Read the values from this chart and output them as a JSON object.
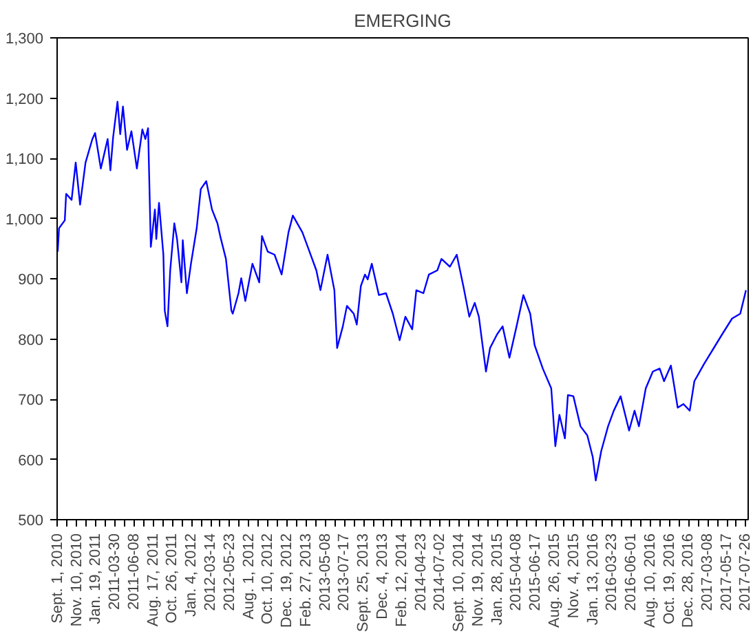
{
  "chart_data": {
    "type": "line",
    "title": "EMERGING",
    "xlim": [
      "2010-08-30",
      "2017-08-03"
    ],
    "ylim": [
      500,
      1300
    ],
    "yticks": [
      500,
      600,
      700,
      800,
      900,
      {
        "value": 1000,
        "label": "1,000"
      },
      {
        "value": 1100,
        "label": "1,100"
      },
      {
        "value": 1200,
        "label": "1,200"
      },
      {
        "value": 1300,
        "label": "1,300"
      }
    ],
    "xticks": [
      {
        "value": "2010-09-01",
        "label": "Sept. 1, 2010"
      },
      {
        "value": "2010-11-10",
        "label": "Nov. 10, 2010"
      },
      {
        "value": "2011-01-19",
        "label": "Jan. 19, 2011"
      },
      {
        "value": "2011-03-30",
        "label": "2011-03-30"
      },
      {
        "value": "2011-06-08",
        "label": "2011-06-08"
      },
      {
        "value": "2011-08-17",
        "label": "Aug. 17, 2011"
      },
      {
        "value": "2011-10-26",
        "label": "Oct. 26, 2011"
      },
      {
        "value": "2012-01-04",
        "label": "Jan. 4, 2012"
      },
      {
        "value": "2012-03-14",
        "label": "2012-03-14"
      },
      {
        "value": "2012-05-23",
        "label": "2012-05-23"
      },
      {
        "value": "2012-08-01",
        "label": "Aug. 1, 2012"
      },
      {
        "value": "2012-10-10",
        "label": "Oct. 10, 2012"
      },
      {
        "value": "2012-12-19",
        "label": "Dec. 19, 2012"
      },
      {
        "value": "2013-02-27",
        "label": "Feb. 27, 2013"
      },
      {
        "value": "2013-05-08",
        "label": "2013-05-08"
      },
      {
        "value": "2013-07-17",
        "label": "2013-07-17"
      },
      {
        "value": "2013-09-25",
        "label": "Sept. 25, 2013"
      },
      {
        "value": "2013-12-04",
        "label": "Dec. 4, 2013"
      },
      {
        "value": "2014-02-12",
        "label": "Feb. 12, 2014"
      },
      {
        "value": "2014-04-23",
        "label": "2014-04-23"
      },
      {
        "value": "2014-07-02",
        "label": "2014-07-02"
      },
      {
        "value": "2014-09-10",
        "label": "Sept. 10, 2014"
      },
      {
        "value": "2014-11-19",
        "label": "Nov. 19, 2014"
      },
      {
        "value": "2015-01-28",
        "label": "Jan. 28, 2015"
      },
      {
        "value": "2015-04-08",
        "label": "2015-04-08"
      },
      {
        "value": "2015-06-17",
        "label": "2015-06-17"
      },
      {
        "value": "2015-08-26",
        "label": "Aug. 26, 2015"
      },
      {
        "value": "2015-11-04",
        "label": "Nov. 4, 2015"
      },
      {
        "value": "2016-01-13",
        "label": "Jan. 13, 2016"
      },
      {
        "value": "2016-03-23",
        "label": "2016-03-23"
      },
      {
        "value": "2016-06-01",
        "label": "2016-06-01"
      },
      {
        "value": "2016-08-10",
        "label": "Aug. 10, 2016"
      },
      {
        "value": "2016-10-19",
        "label": "Oct. 19, 2016"
      },
      {
        "value": "2016-12-28",
        "label": "Dec. 28, 2016"
      },
      {
        "value": "2017-03-08",
        "label": "2017-03-08"
      },
      {
        "value": "2017-05-17",
        "label": "2017-05-17"
      },
      {
        "value": "2017-07-26",
        "label": "2017-07-26"
      }
    ],
    "grid": false,
    "line_style": "solid",
    "series": [
      {
        "color": "#0000ff",
        "x": [
          "2010-09-01",
          "2010-09-06",
          "2010-09-27",
          "2010-10-02",
          "2010-10-22",
          "2010-11-06",
          "2010-11-22",
          "2010-12-12",
          "2011-01-06",
          "2011-01-16",
          "2011-02-06",
          "2011-03-03",
          "2011-03-13",
          "2011-03-23",
          "2011-04-08",
          "2011-04-18",
          "2011-04-28",
          "2011-05-13",
          "2011-05-29",
          "2011-06-18",
          "2011-07-08",
          "2011-07-19",
          "2011-07-29",
          "2011-08-08",
          "2011-08-23",
          "2011-08-28",
          "2011-09-07",
          "2011-09-23",
          "2011-09-28",
          "2011-10-08",
          "2011-10-18",
          "2011-11-02",
          "2011-11-12",
          "2011-11-28",
          "2011-12-03",
          "2011-12-18",
          "2012-01-02",
          "2012-01-23",
          "2012-02-07",
          "2012-02-27",
          "2012-03-19",
          "2012-04-08",
          "2012-04-18",
          "2012-05-09",
          "2012-05-29",
          "2012-06-03",
          "2012-06-24",
          "2012-07-04",
          "2012-07-19",
          "2012-08-14",
          "2012-09-08",
          "2012-09-18",
          "2012-10-09",
          "2012-11-03",
          "2012-11-29",
          "2012-12-24",
          "2013-01-09",
          "2013-02-13",
          "2013-03-11",
          "2013-04-05",
          "2013-04-20",
          "2013-05-16",
          "2013-06-10",
          "2013-06-20",
          "2013-07-11",
          "2013-07-26",
          "2013-08-20",
          "2013-08-31",
          "2013-09-15",
          "2013-09-30",
          "2013-10-10",
          "2013-10-25",
          "2013-11-20",
          "2013-12-16",
          "2014-01-10",
          "2014-02-04",
          "2014-02-25",
          "2014-03-22",
          "2014-04-06",
          "2014-05-02",
          "2014-05-22",
          "2014-06-22",
          "2014-07-07",
          "2014-08-07",
          "2014-09-01",
          "2014-09-26",
          "2014-10-17",
          "2014-11-06",
          "2014-11-21",
          "2014-12-17",
          "2015-01-01",
          "2015-01-27",
          "2015-02-16",
          "2015-03-13",
          "2015-04-08",
          "2015-05-03",
          "2015-05-28",
          "2015-06-13",
          "2015-07-13",
          "2015-08-13",
          "2015-08-28",
          "2015-09-12",
          "2015-10-02",
          "2015-10-13",
          "2015-11-02",
          "2015-11-28",
          "2015-12-23",
          "2016-01-12",
          "2016-01-23",
          "2016-02-12",
          "2016-03-08",
          "2016-03-29",
          "2016-04-23",
          "2016-05-24",
          "2016-06-13",
          "2016-06-29",
          "2016-07-24",
          "2016-08-19",
          "2016-09-13",
          "2016-09-29",
          "2016-10-24",
          "2016-11-18",
          "2016-12-09",
          "2017-01-01",
          "2017-01-18",
          "2017-02-23",
          "2017-03-26",
          "2017-04-30",
          "2017-06-05",
          "2017-07-05",
          "2017-07-26"
        ],
        "values": [
          945,
          984,
          997,
          1041,
          1031,
          1093,
          1023,
          1093,
          1132,
          1142,
          1083,
          1132,
          1080,
          1135,
          1194,
          1140,
          1186,
          1114,
          1145,
          1083,
          1148,
          1132,
          1150,
          953,
          1015,
          966,
          1026,
          940,
          847,
          821,
          914,
          992,
          966,
          894,
          964,
          876,
          925,
          984,
          1049,
          1062,
          1015,
          992,
          971,
          933,
          847,
          842,
          876,
          901,
          863,
          925,
          894,
          971,
          945,
          940,
          907,
          977,
          1005,
          977,
          945,
          914,
          881,
          940,
          881,
          785,
          821,
          855,
          842,
          824,
          888,
          907,
          899,
          925,
          873,
          876,
          842,
          798,
          837,
          816,
          881,
          876,
          907,
          914,
          933,
          920,
          940,
          886,
          837,
          860,
          837,
          746,
          785,
          808,
          821,
          769,
          821,
          873,
          842,
          790,
          751,
          718,
          622,
          674,
          635,
          707,
          705,
          655,
          640,
          604,
          565,
          614,
          655,
          681,
          705,
          648,
          681,
          655,
          718,
          746,
          751,
          730,
          756,
          686,
          692,
          681,
          730,
          759,
          782,
          808,
          834,
          842,
          881
        ]
      }
    ]
  }
}
